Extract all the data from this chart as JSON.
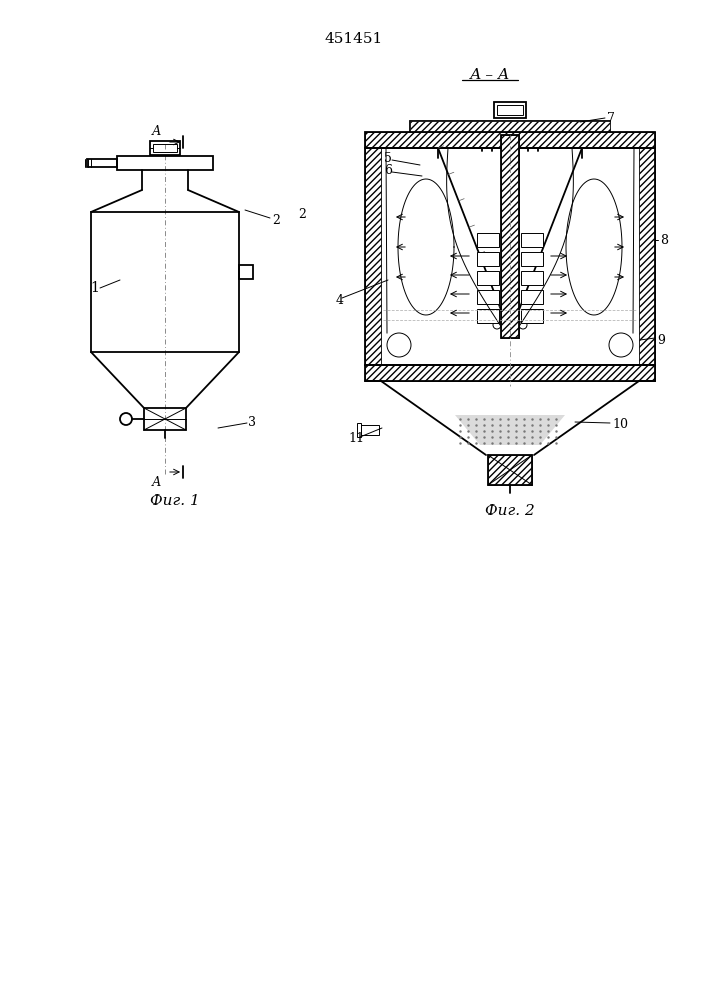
{
  "title": "451451",
  "fig1_label": "Фиг. 1",
  "fig2_label": "Фиг. 2",
  "section_label": "А – А",
  "bg_color": "#ffffff"
}
